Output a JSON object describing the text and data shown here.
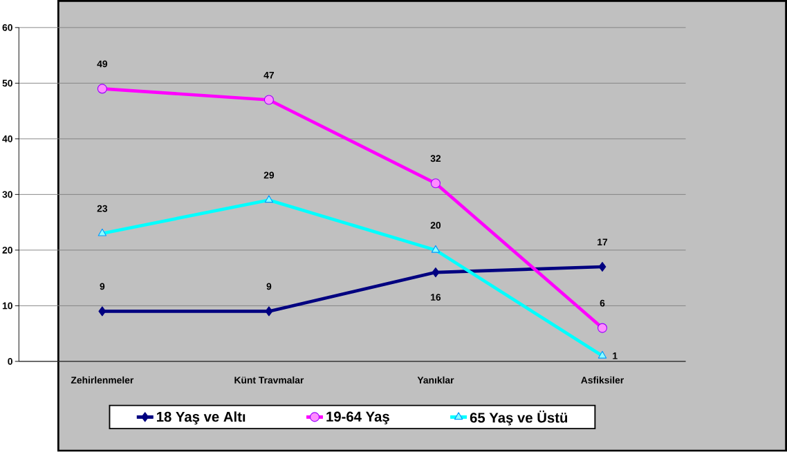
{
  "chart_data": {
    "type": "line",
    "categories": [
      "Zehirlenmeler",
      "Künt Travmalar",
      "Yanıklar",
      "Asfiksiler"
    ],
    "series": [
      {
        "name": "18 Yaş ve Altı",
        "color": "#000080",
        "marker": "diamond",
        "values": [
          9,
          9,
          16,
          17
        ]
      },
      {
        "name": "19-64 Yaş",
        "color": "#ff00ff",
        "marker": "circle",
        "values": [
          49,
          47,
          32,
          6
        ]
      },
      {
        "name": "65 Yaş ve Üstü",
        "color": "#00ffff",
        "marker": "triangle",
        "values": [
          23,
          29,
          20,
          1
        ]
      }
    ],
    "ylim": [
      0,
      60
    ],
    "yticks": [
      0,
      10,
      20,
      30,
      40,
      50,
      60
    ],
    "grid": "y",
    "legend": "bottom",
    "data_labels": true,
    "line_style": "solid"
  }
}
